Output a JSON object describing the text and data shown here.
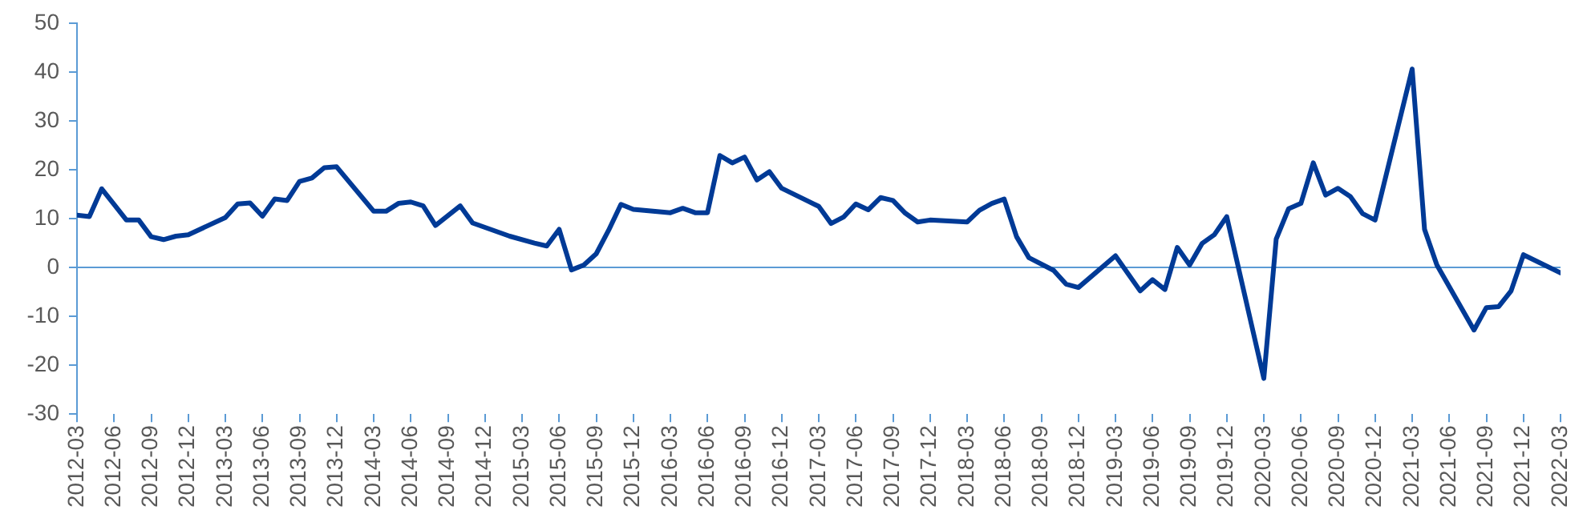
{
  "chart_data": {
    "type": "line",
    "x": [
      "2012-03",
      "2012-04",
      "2012-05",
      "2012-07",
      "2012-08",
      "2012-09",
      "2012-10",
      "2012-11",
      "2012-12",
      "2013-03",
      "2013-04",
      "2013-05",
      "2013-06",
      "2013-07",
      "2013-08",
      "2013-09",
      "2013-10",
      "2013-11",
      "2013-12",
      "2014-03",
      "2014-04",
      "2014-05",
      "2014-06",
      "2014-07",
      "2014-08",
      "2014-10",
      "2014-11",
      "2015-02",
      "2015-04",
      "2015-05",
      "2015-06",
      "2015-07",
      "2015-08",
      "2015-09",
      "2015-10",
      "2015-11",
      "2015-12",
      "2016-03",
      "2016-04",
      "2016-05",
      "2016-06",
      "2016-07",
      "2016-08",
      "2016-09",
      "2016-10",
      "2016-11",
      "2016-12",
      "2017-03",
      "2017-04",
      "2017-05",
      "2017-06",
      "2017-07",
      "2017-08",
      "2017-09",
      "2017-10",
      "2017-11",
      "2017-12",
      "2018-03",
      "2018-04",
      "2018-05",
      "2018-06",
      "2018-07",
      "2018-08",
      "2018-10",
      "2018-11",
      "2018-12",
      "2019-03",
      "2019-05",
      "2019-06",
      "2019-07",
      "2019-08",
      "2019-09",
      "2019-10",
      "2019-11",
      "2019-12",
      "2020-03",
      "2020-04",
      "2020-05",
      "2020-06",
      "2020-07",
      "2020-08",
      "2020-09",
      "2020-10",
      "2020-11",
      "2020-12",
      "2021-03",
      "2021-04",
      "2021-05",
      "2021-08",
      "2021-09",
      "2021-10",
      "2021-11",
      "2021-12",
      "2022-03"
    ],
    "series": [
      {
        "color": "#003a96",
        "values": [
          10.7,
          10.4,
          16.1,
          9.7,
          9.7,
          6.3,
          5.7,
          6.4,
          6.7,
          10.2,
          13.0,
          13.2,
          10.5,
          14.0,
          13.7,
          17.6,
          18.3,
          20.4,
          20.6,
          11.5,
          11.5,
          13.1,
          13.4,
          12.6,
          8.6,
          12.6,
          9.1,
          6.4,
          5.0,
          4.4,
          7.8,
          -0.5,
          0.5,
          2.8,
          7.6,
          12.9,
          11.9,
          11.2,
          12.1,
          11.2,
          11.2,
          22.9,
          21.4,
          22.6,
          17.9,
          19.6,
          16.2,
          12.5,
          9.0,
          10.3,
          13.0,
          11.8,
          14.3,
          13.7,
          11.1,
          9.3,
          9.7,
          9.3,
          11.7,
          13.1,
          14.0,
          6.3,
          2.0,
          -0.6,
          -3.4,
          -4.1,
          2.4,
          -4.8,
          -2.5,
          -4.5,
          4.1,
          0.5,
          4.9,
          6.7,
          10.4,
          -22.7,
          5.8,
          12.0,
          13.1,
          21.4,
          14.8,
          16.2,
          14.5,
          11.0,
          9.7,
          40.6,
          7.8,
          0.5,
          -12.8,
          -8.2,
          -8.0,
          -4.8,
          2.6,
          -1.1
        ]
      }
    ],
    "xlim": [
      "2012-03",
      "2022-03"
    ],
    "xticks": [
      "2012-03",
      "2012-06",
      "2012-09",
      "2012-12",
      "2013-03",
      "2013-06",
      "2013-09",
      "2013-12",
      "2014-03",
      "2014-06",
      "2014-09",
      "2014-12",
      "2015-03",
      "2015-06",
      "2015-09",
      "2015-12",
      "2016-03",
      "2016-06",
      "2016-09",
      "2016-12",
      "2017-03",
      "2017-06",
      "2017-09",
      "2017-12",
      "2018-03",
      "2018-06",
      "2018-09",
      "2018-12",
      "2019-03",
      "2019-06",
      "2019-09",
      "2019-12",
      "2020-03",
      "2020-06",
      "2020-09",
      "2020-12",
      "2021-03",
      "2021-06",
      "2021-09",
      "2021-12",
      "2022-03"
    ],
    "ylim": [
      -30,
      50
    ],
    "yticks": [
      -30,
      -20,
      -10,
      0,
      10,
      20,
      30,
      40,
      50
    ],
    "ref_lines": [
      {
        "axis": "y",
        "value": 0,
        "color": "#5b9bd5"
      }
    ],
    "grid": false,
    "legend": false,
    "marker": "none",
    "line_style": "solid"
  }
}
